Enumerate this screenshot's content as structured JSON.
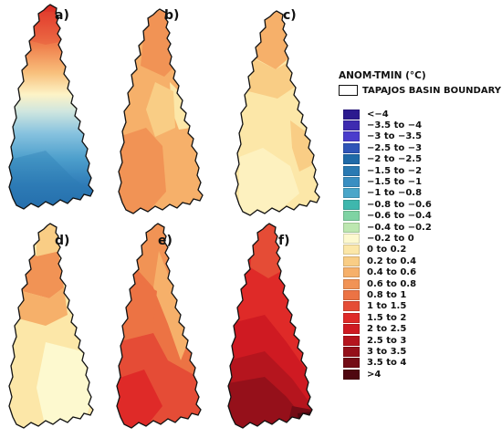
{
  "legend": {
    "title": "ANOM-TMIN (°C)",
    "boundary_label": "TAPAJOS BASIN BOUNDARY",
    "classes": [
      {
        "label": "<−4",
        "color": "#2c1b8f"
      },
      {
        "label": "−3.5 to −4",
        "color": "#3e2bb0"
      },
      {
        "label": "−3 to −3.5",
        "color": "#4a3ccc"
      },
      {
        "label": "−2.5 to −3",
        "color": "#2f55b8"
      },
      {
        "label": "−2 to −2.5",
        "color": "#1f6aa8"
      },
      {
        "label": "−1.5 to −2",
        "color": "#2a7ab3"
      },
      {
        "label": "−1.5 to −1",
        "color": "#3a8fc2"
      },
      {
        "label": "−1 to −0.8",
        "color": "#4aa6c9"
      },
      {
        "label": "−0.8 to −0.6",
        "color": "#3fb7ad"
      },
      {
        "label": "−0.6 to −0.4",
        "color": "#7fd3a3"
      },
      {
        "label": "−0.4 to −0.2",
        "color": "#bde7b0"
      },
      {
        "label": "−0.2 to 0",
        "color": "#fdf9cf"
      },
      {
        "label": "0 to 0.2",
        "color": "#fce7a8"
      },
      {
        "label": "0.2 to 0.4",
        "color": "#f9cd85"
      },
      {
        "label": "0.4 to 0.6",
        "color": "#f6b06a"
      },
      {
        "label": "0.6 to 0.8",
        "color": "#f19355"
      },
      {
        "label": "0.8 to 1",
        "color": "#ec7344"
      },
      {
        "label": "1 to 1.5",
        "color": "#e54c36"
      },
      {
        "label": "1.5 to 2",
        "color": "#df2a28"
      },
      {
        "label": "2 to 2.5",
        "color": "#cf1a22"
      },
      {
        "label": "2.5 to 3",
        "color": "#b5151e"
      },
      {
        "label": "3 to 3.5",
        "color": "#95101a"
      },
      {
        "label": "3.5 to 4",
        "color": "#740c16"
      },
      {
        "label": ">4",
        "color": "#4f0710"
      }
    ]
  },
  "panels": [
    {
      "label": "a)"
    },
    {
      "label": "b)"
    },
    {
      "label": "c)"
    },
    {
      "label": "d)"
    },
    {
      "label": "e)"
    },
    {
      "label": "f)"
    }
  ]
}
